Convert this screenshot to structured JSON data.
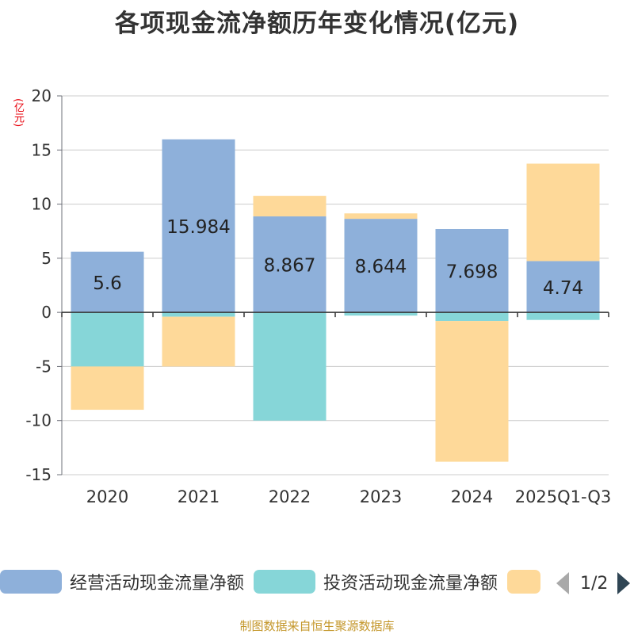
{
  "chart_data": {
    "type": "bar",
    "stacked": true,
    "title": "各项现金流净额历年变化情况(亿元)",
    "ylabel": "(亿元)",
    "ylim": [
      -15,
      20
    ],
    "yticks": [
      20,
      15,
      10,
      5,
      0,
      -5,
      -10,
      -15
    ],
    "grid": true,
    "categories": [
      "2020",
      "2021",
      "2022",
      "2023",
      "2024",
      "2025Q1-Q3"
    ],
    "series": [
      {
        "name": "经营活动现金流量净额",
        "color": "#8eb0da",
        "values": [
          5.6,
          15.984,
          8.867,
          8.644,
          7.698,
          4.74
        ]
      },
      {
        "name": "投资活动现金流量净额",
        "color": "#86d6d8",
        "values": [
          -5.0,
          -0.4,
          -10.0,
          -0.3,
          -0.8,
          -0.7
        ]
      },
      {
        "name": "",
        "color": "#fed999",
        "values": [
          -4.0,
          -4.6,
          1.9,
          0.5,
          -13.0,
          9.0
        ]
      }
    ],
    "data_labels": [
      "5.6",
      "15.984",
      "8.867",
      "8.644",
      "7.698",
      "4.74"
    ],
    "legend": {
      "placement": "bottom",
      "page": "1/2"
    }
  },
  "footer": {
    "source": "制图数据来自恒生聚源数据库"
  }
}
